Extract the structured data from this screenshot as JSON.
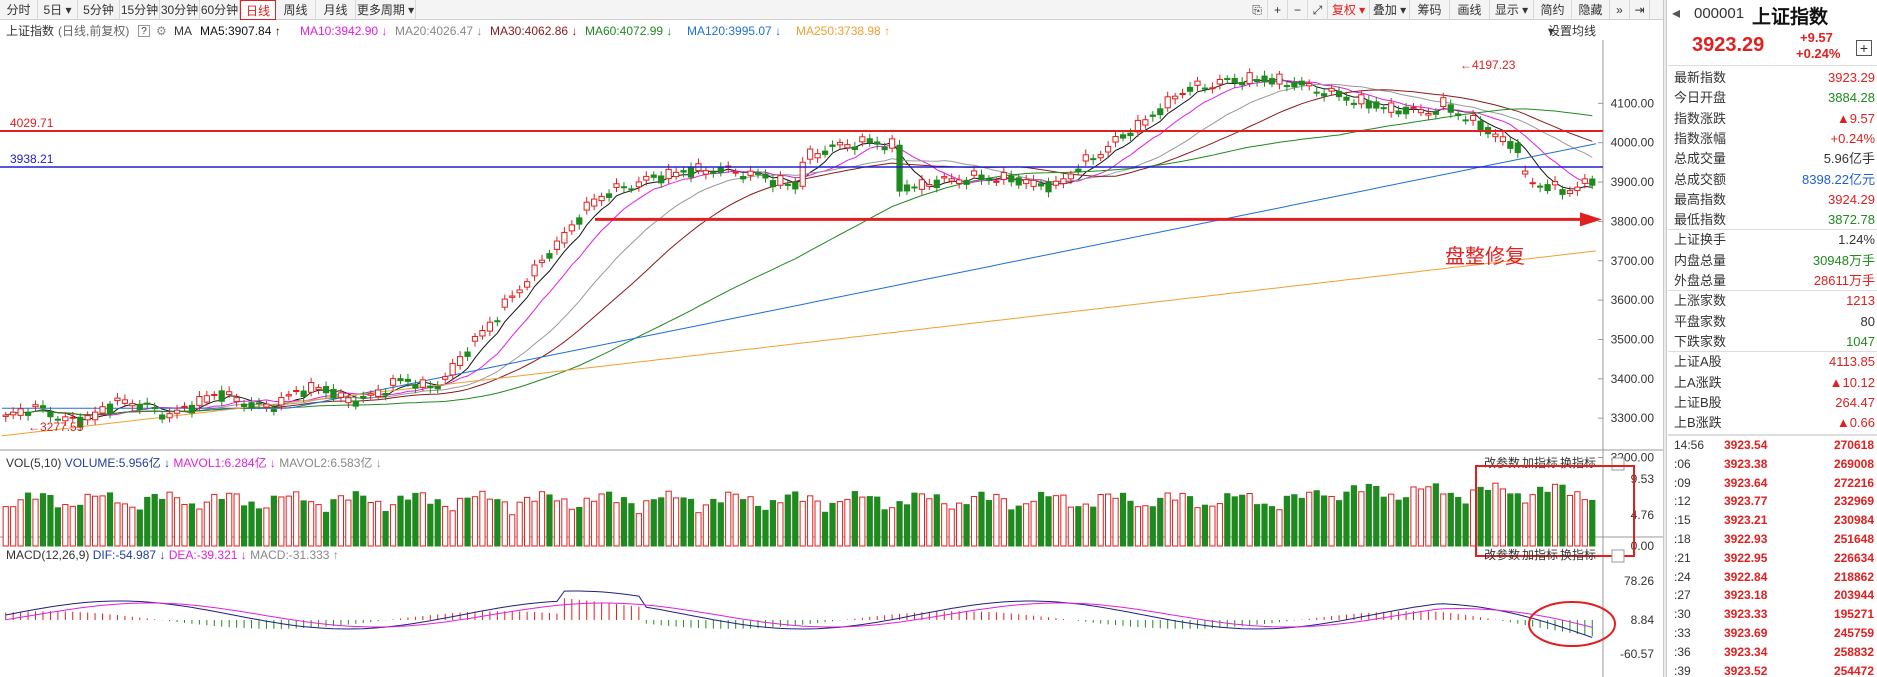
{
  "toolbar": {
    "periods": [
      "分时",
      "5日",
      "5分钟",
      "15分钟",
      "30分钟",
      "60分钟",
      "日线",
      "周线",
      "月线",
      "更多周期"
    ],
    "active_period": "日线",
    "right_buttons": [
      "复权",
      "叠加",
      "画线",
      "显示",
      "简约",
      "隐藏"
    ],
    "right_extra": "筹码"
  },
  "infobar": {
    "name": "上证指数",
    "mode": "(日线,前复权)",
    "help": "?",
    "ma_label": "MA",
    "ma5": "MA5:3907.84 ↑",
    "ma10": "MA10:3942.90 ↓",
    "ma20": "MA20:4026.47 ↓",
    "ma30": "MA30:4062.86 ↓",
    "ma60": "MA60:4072.99 ↓",
    "ma120": "MA120:3995.07 ↓",
    "ma250": "MA250:3738.98 ↑",
    "settings": "设置均线"
  },
  "colors": {
    "up": "#e02020",
    "down": "#1f8a1f",
    "ma5": "#111111",
    "ma10": "#e020e0",
    "ma20": "#999999",
    "ma30": "#8b1a1a",
    "ma60": "#1f8a1f",
    "ma120": "#1e70d8",
    "ma250": "#f0a030"
  },
  "price_axis": [
    "4100.00",
    "4000.00",
    "3900.00",
    "3800.00",
    "3700.00",
    "3600.00",
    "3500.00",
    "3400.00",
    "3300.00",
    "3200.00"
  ],
  "hlines": {
    "red_label": "4029.71",
    "blue_label": "3938.21"
  },
  "annotations": {
    "high": "4197.23",
    "low": "3277.55",
    "note": "盘整修复"
  },
  "vol": {
    "title": "VOL(5,10)",
    "volume": "VOLUME:5.956亿 ↓",
    "mavol1": "MAVOL1:6.284亿 ↓",
    "mavol2": "MAVOL2:6.583亿 ↓",
    "axis": [
      "9.53",
      "4.76",
      "0.00"
    ],
    "btns": [
      "改参数",
      "加指标",
      "换指标"
    ]
  },
  "macd": {
    "title": "MACD(12,26,9)",
    "dif": "DIF:-54.987 ↓",
    "dea": "DEA:-39.321 ↓",
    "macd": "MACD:-31.333 ↑",
    "axis": [
      "78.26",
      "8.84",
      "-60.57"
    ],
    "btns": [
      "改参数",
      "加指标",
      "换指标"
    ]
  },
  "quote": {
    "code": "000001",
    "name": "上证指数",
    "price": "3923.29",
    "change": "+9.57",
    "pct": "+0.24%",
    "rows": [
      {
        "label": "最新指数",
        "value": "3923.29",
        "color": "#e02020"
      },
      {
        "label": "今日开盘",
        "value": "3884.28",
        "color": "#1f8a1f"
      },
      {
        "label": "指数涨跌",
        "value": "▲9.57",
        "color": "#e02020"
      },
      {
        "label": "指数涨幅",
        "value": "+0.24%",
        "color": "#e02020"
      },
      {
        "label": "总成交量",
        "value": "5.96亿手",
        "color": "#333333"
      },
      {
        "label": "总成交额",
        "value": "8398.22亿元",
        "color": "#1e5fd8"
      },
      {
        "label": "最高指数",
        "value": "3924.29",
        "color": "#e02020"
      },
      {
        "label": "最低指数",
        "value": "3872.78",
        "color": "#1f8a1f"
      },
      {
        "label": "上证换手",
        "value": "1.24%",
        "color": "#333333"
      },
      {
        "label": "内盘总量",
        "value": "30948万手",
        "color": "#1f8a1f"
      },
      {
        "label": "外盘总量",
        "value": "28611万手",
        "color": "#e02020"
      },
      {
        "label": "上涨家数",
        "value": "1213",
        "color": "#e02020"
      },
      {
        "label": "平盘家数",
        "value": "80",
        "color": "#333333"
      },
      {
        "label": "下跌家数",
        "value": "1047",
        "color": "#1f8a1f"
      },
      {
        "label": "上证A股",
        "value": "4113.85",
        "color": "#e02020"
      },
      {
        "label": "上A涨跌",
        "value": "▲10.12",
        "color": "#e02020"
      },
      {
        "label": "上证B股",
        "value": "264.47",
        "color": "#e02020"
      },
      {
        "label": "上B涨跌",
        "value": "▲0.66",
        "color": "#e02020"
      }
    ],
    "ticks": [
      {
        "t": "14:56",
        "p": "3923.54",
        "q": "270618"
      },
      {
        "t": ":06",
        "p": "3923.38",
        "q": "269008"
      },
      {
        "t": ":09",
        "p": "3923.64",
        "q": "272216"
      },
      {
        "t": ":12",
        "p": "3923.77",
        "q": "232969"
      },
      {
        "t": ":15",
        "p": "3923.21",
        "q": "230984"
      },
      {
        "t": ":18",
        "p": "3922.93",
        "q": "251648"
      },
      {
        "t": ":21",
        "p": "3922.95",
        "q": "226634"
      },
      {
        "t": ":24",
        "p": "3922.84",
        "q": "218862"
      },
      {
        "t": ":27",
        "p": "3923.18",
        "q": "203944"
      },
      {
        "t": ":30",
        "p": "3923.33",
        "q": "195271"
      },
      {
        "t": ":33",
        "p": "3923.69",
        "q": "245759"
      },
      {
        "t": ":36",
        "p": "3923.34",
        "q": "258832"
      },
      {
        "t": ":39",
        "p": "3923.52",
        "q": "254472"
      }
    ]
  }
}
